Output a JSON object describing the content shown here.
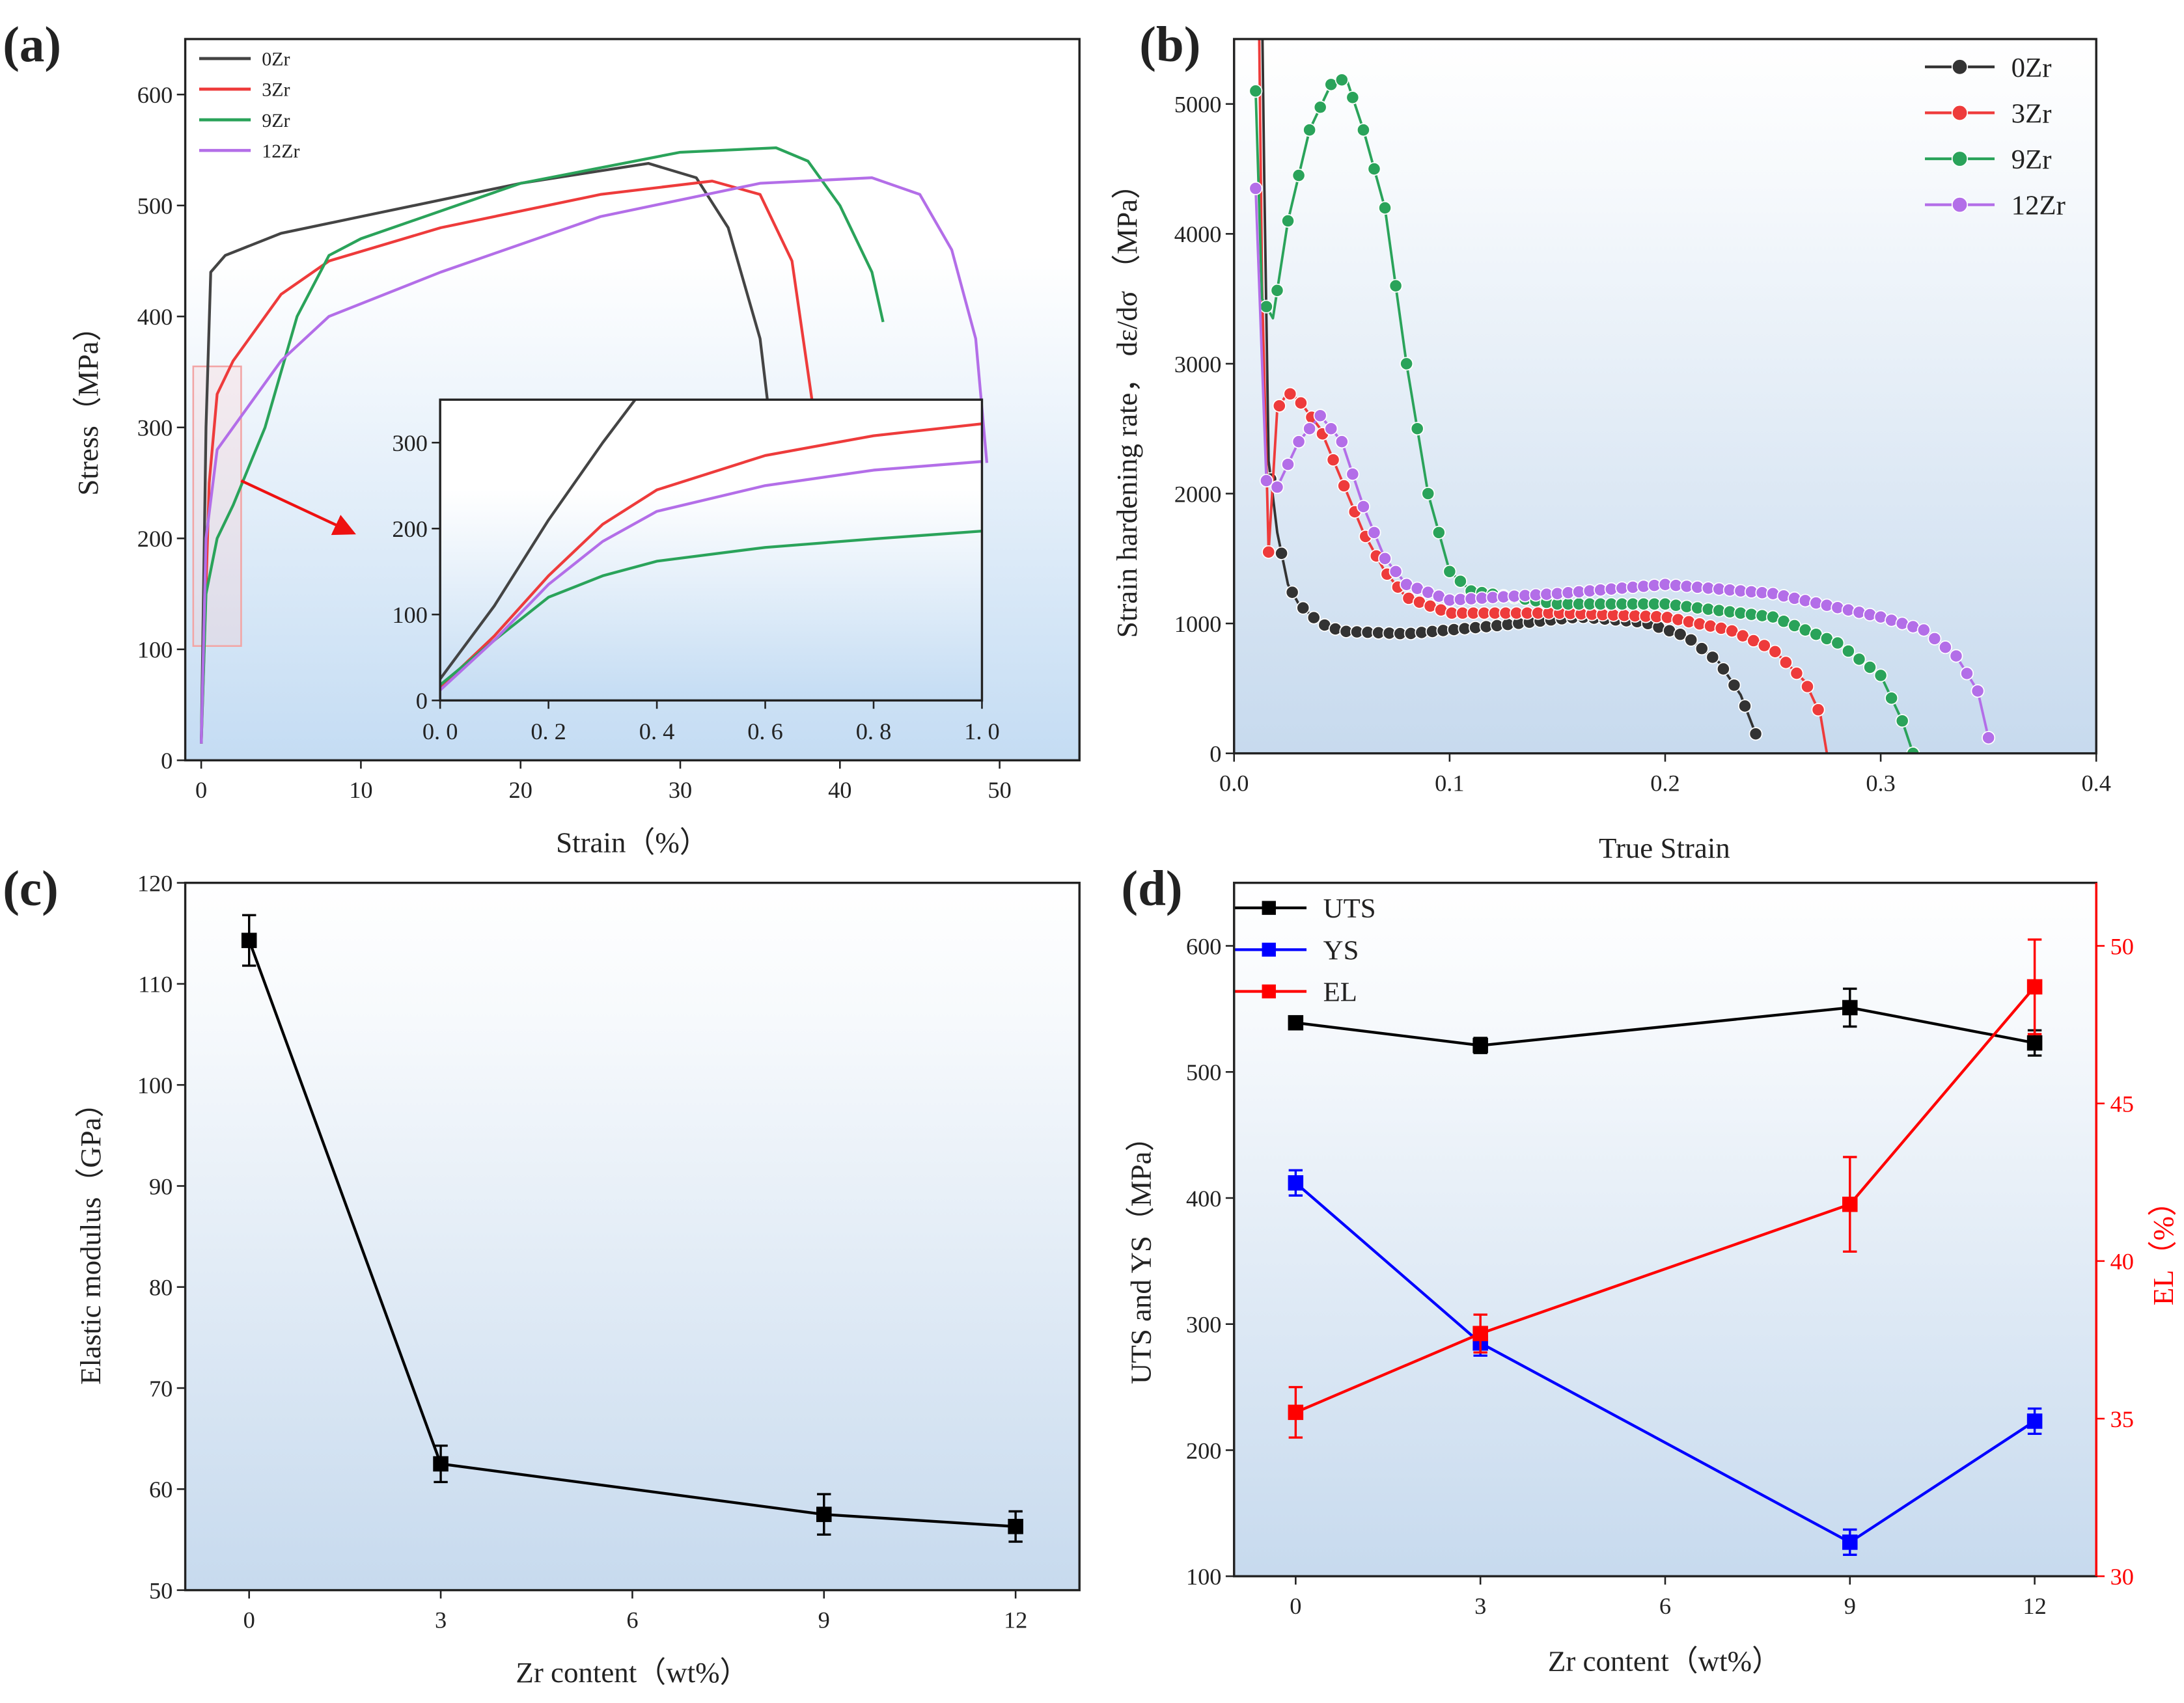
{
  "chart_data": [
    {
      "panel": "(a)",
      "type": "line",
      "xlabel": "Strain（%）",
      "ylabel": "Stress（MPa）",
      "xlim": [
        -1,
        55
      ],
      "ylim": [
        0,
        650
      ],
      "xticks": [
        0,
        10,
        20,
        30,
        40,
        50
      ],
      "xtick_labels": [
        "0",
        "10",
        "20",
        "30",
        "40",
        "50"
      ],
      "yticks": [
        0,
        100,
        200,
        300,
        400,
        500,
        600
      ],
      "ytick_labels": [
        "0",
        "100",
        "200",
        "300",
        "400",
        "500",
        "600"
      ],
      "legend_position": "top-left",
      "series": [
        {
          "name": "0Zr",
          "color": "#444444",
          "points": [
            [
              0,
              15
            ],
            [
              0.3,
              300
            ],
            [
              0.6,
              440
            ],
            [
              1.5,
              455
            ],
            [
              5,
              475
            ],
            [
              10,
              490
            ],
            [
              20,
              520
            ],
            [
              28,
              538
            ],
            [
              31,
              525
            ],
            [
              33,
              480
            ],
            [
              35,
              380
            ],
            [
              35.5,
              320
            ]
          ]
        },
        {
          "name": "3Zr",
          "color": "#ee3b3b",
          "points": [
            [
              0,
              15
            ],
            [
              0.5,
              250
            ],
            [
              1,
              330
            ],
            [
              2,
              360
            ],
            [
              5,
              420
            ],
            [
              8,
              450
            ],
            [
              15,
              480
            ],
            [
              25,
              510
            ],
            [
              32,
              522
            ],
            [
              35,
              510
            ],
            [
              37,
              450
            ],
            [
              38.3,
              320
            ]
          ]
        },
        {
          "name": "9Zr",
          "color": "#2aa35a",
          "points": [
            [
              0,
              15
            ],
            [
              0.3,
              150
            ],
            [
              1,
              200
            ],
            [
              2,
              230
            ],
            [
              4,
              300
            ],
            [
              6,
              400
            ],
            [
              8,
              455
            ],
            [
              10,
              470
            ],
            [
              20,
              520
            ],
            [
              30,
              548
            ],
            [
              36,
              552
            ],
            [
              38,
              540
            ],
            [
              40,
              500
            ],
            [
              42,
              440
            ],
            [
              42.7,
              395
            ]
          ]
        },
        {
          "name": "12Zr",
          "color": "#b36ee8",
          "points": [
            [
              0,
              15
            ],
            [
              0.3,
              200
            ],
            [
              1,
              280
            ],
            [
              2,
              300
            ],
            [
              5,
              360
            ],
            [
              8,
              400
            ],
            [
              15,
              440
            ],
            [
              25,
              490
            ],
            [
              35,
              520
            ],
            [
              42,
              525
            ],
            [
              45,
              510
            ],
            [
              47,
              460
            ],
            [
              48.5,
              380
            ],
            [
              49.2,
              268
            ]
          ]
        }
      ],
      "zoom_box": {
        "x": [
          -0.5,
          2.5
        ],
        "y": [
          103,
          355
        ]
      },
      "inset": {
        "xlim": [
          0,
          1
        ],
        "ylim": [
          0,
          350
        ],
        "xticks": [
          0,
          0.2,
          0.4,
          0.6,
          0.8,
          1.0
        ],
        "xtick_labels": [
          "0. 0",
          "0. 2",
          "0. 4",
          "0. 6",
          "0. 8",
          "1. 0"
        ],
        "yticks": [
          0,
          100,
          200,
          300
        ],
        "ytick_labels": [
          "0",
          "100",
          "200",
          "300"
        ],
        "series": [
          {
            "name": "0Zr",
            "color": "#444444",
            "points": [
              [
                0,
                25
              ],
              [
                0.1,
                110
              ],
              [
                0.2,
                210
              ],
              [
                0.3,
                300
              ],
              [
                0.36,
                350
              ]
            ]
          },
          {
            "name": "3Zr",
            "color": "#ee3b3b",
            "points": [
              [
                0,
                15
              ],
              [
                0.1,
                75
              ],
              [
                0.2,
                145
              ],
              [
                0.3,
                205
              ],
              [
                0.4,
                245
              ],
              [
                0.6,
                285
              ],
              [
                0.8,
                308
              ],
              [
                1,
                322
              ]
            ]
          },
          {
            "name": "9Zr",
            "color": "#2aa35a",
            "points": [
              [
                0,
                18
              ],
              [
                0.1,
                70
              ],
              [
                0.2,
                120
              ],
              [
                0.3,
                145
              ],
              [
                0.4,
                162
              ],
              [
                0.6,
                178
              ],
              [
                0.8,
                188
              ],
              [
                1,
                197
              ]
            ]
          },
          {
            "name": "12Zr",
            "color": "#b36ee8",
            "points": [
              [
                0,
                12
              ],
              [
                0.1,
                70
              ],
              [
                0.2,
                135
              ],
              [
                0.3,
                185
              ],
              [
                0.4,
                220
              ],
              [
                0.6,
                250
              ],
              [
                0.8,
                268
              ],
              [
                1,
                278
              ]
            ]
          }
        ]
      }
    },
    {
      "panel": "(b)",
      "type": "line",
      "xlabel": "True Strain",
      "ylabel": "Strain hardening rate， dε/dσ （MPa）",
      "xlim": [
        0,
        0.4
      ],
      "ylim": [
        0,
        5500
      ],
      "xticks": [
        0,
        0.1,
        0.2,
        0.3,
        0.4
      ],
      "xtick_labels": [
        "0.0",
        "0.1",
        "0.2",
        "0.3",
        "0.4"
      ],
      "yticks": [
        0,
        1000,
        2000,
        3000,
        4000,
        5000
      ],
      "ytick_labels": [
        "0",
        "1000",
        "2000",
        "3000",
        "4000",
        "5000"
      ],
      "legend_position": "top-right",
      "series": [
        {
          "name": "0Zr",
          "color": "#333333",
          "points": [
            [
              0.012,
              7000
            ],
            [
              0.014,
              4400
            ],
            [
              0.016,
              2250
            ],
            [
              0.02,
              1700
            ],
            [
              0.025,
              1300
            ],
            [
              0.03,
              1150
            ],
            [
              0.04,
              1000
            ],
            [
              0.05,
              940
            ],
            [
              0.08,
              920
            ],
            [
              0.12,
              980
            ],
            [
              0.16,
              1050
            ],
            [
              0.19,
              1010
            ],
            [
              0.21,
              900
            ],
            [
              0.225,
              700
            ],
            [
              0.235,
              450
            ],
            [
              0.242,
              150
            ]
          ]
        },
        {
          "name": "3Zr",
          "color": "#ee3b3b",
          "points": [
            [
              0.011,
              6500
            ],
            [
              0.013,
              3600
            ],
            [
              0.016,
              1550
            ],
            [
              0.02,
              2650
            ],
            [
              0.025,
              2780
            ],
            [
              0.03,
              2720
            ],
            [
              0.04,
              2500
            ],
            [
              0.05,
              2100
            ],
            [
              0.06,
              1700
            ],
            [
              0.07,
              1400
            ],
            [
              0.08,
              1200
            ],
            [
              0.1,
              1080
            ],
            [
              0.15,
              1080
            ],
            [
              0.2,
              1050
            ],
            [
              0.23,
              950
            ],
            [
              0.25,
              800
            ],
            [
              0.265,
              550
            ],
            [
              0.272,
              300
            ],
            [
              0.275,
              0
            ]
          ]
        },
        {
          "name": "9Zr",
          "color": "#2aa35a",
          "points": [
            [
              0.01,
              5100
            ],
            [
              0.013,
              3500
            ],
            [
              0.018,
              3350
            ],
            [
              0.025,
              4100
            ],
            [
              0.035,
              4800
            ],
            [
              0.045,
              5150
            ],
            [
              0.052,
              5200
            ],
            [
              0.06,
              4800
            ],
            [
              0.07,
              4200
            ],
            [
              0.08,
              3000
            ],
            [
              0.09,
              2000
            ],
            [
              0.1,
              1400
            ],
            [
              0.11,
              1250
            ],
            [
              0.15,
              1150
            ],
            [
              0.2,
              1150
            ],
            [
              0.25,
              1050
            ],
            [
              0.28,
              850
            ],
            [
              0.3,
              600
            ],
            [
              0.31,
              250
            ],
            [
              0.315,
              0
            ]
          ]
        },
        {
          "name": "12Zr",
          "color": "#b36ee8",
          "points": [
            [
              0.01,
              4350
            ],
            [
              0.015,
              2100
            ],
            [
              0.02,
              2050
            ],
            [
              0.03,
              2400
            ],
            [
              0.04,
              2600
            ],
            [
              0.05,
              2400
            ],
            [
              0.06,
              1900
            ],
            [
              0.07,
              1500
            ],
            [
              0.08,
              1300
            ],
            [
              0.1,
              1180
            ],
            [
              0.15,
              1230
            ],
            [
              0.2,
              1300
            ],
            [
              0.25,
              1230
            ],
            [
              0.3,
              1050
            ],
            [
              0.32,
              950
            ],
            [
              0.335,
              750
            ],
            [
              0.345,
              480
            ],
            [
              0.35,
              120
            ]
          ]
        }
      ]
    },
    {
      "panel": "(c)",
      "type": "line",
      "xlabel": "Zr content（wt%）",
      "ylabel": "Elastic modulus（GPa）",
      "xlim": [
        -1,
        13
      ],
      "ylim": [
        50,
        120
      ],
      "xticks": [
        0,
        3,
        6,
        9,
        12
      ],
      "xtick_labels": [
        "0",
        "3",
        "6",
        "9",
        "12"
      ],
      "yticks": [
        50,
        60,
        70,
        80,
        90,
        100,
        110,
        120
      ],
      "ytick_labels": [
        "50",
        "60",
        "70",
        "80",
        "90",
        "100",
        "110",
        "120"
      ],
      "series": [
        {
          "name": "Elastic modulus",
          "color": "#000000",
          "x": [
            0,
            3,
            9,
            12
          ],
          "values": [
            114.3,
            62.5,
            57.5,
            56.3
          ],
          "errors": [
            2.5,
            1.8,
            2.0,
            1.5
          ]
        }
      ]
    },
    {
      "panel": "(d)",
      "type": "line",
      "xlabel": "Zr content（wt%）",
      "ylabel": "UTS and YS（MPa）",
      "y2label": "EL（%）",
      "xlim": [
        -1,
        13
      ],
      "ylim": [
        100,
        650
      ],
      "y2lim": [
        30,
        52
      ],
      "xticks": [
        0,
        3,
        6,
        9,
        12
      ],
      "xtick_labels": [
        "0",
        "3",
        "6",
        "9",
        "12"
      ],
      "yticks": [
        100,
        200,
        300,
        400,
        500,
        600
      ],
      "ytick_labels": [
        "100",
        "200",
        "300",
        "400",
        "500",
        "600"
      ],
      "y2ticks": [
        30,
        35,
        40,
        45,
        50
      ],
      "y2tick_labels": [
        "30",
        "35",
        "40",
        "45",
        "50"
      ],
      "legend_position": "top-left",
      "series": [
        {
          "name": "UTS",
          "color": "#000000",
          "axis": "left",
          "x": [
            0,
            3,
            9,
            12
          ],
          "values": [
            539,
            521,
            551,
            523
          ],
          "errors": [
            4,
            6,
            15,
            10
          ]
        },
        {
          "name": "YS",
          "color": "#0000ff",
          "axis": "left",
          "x": [
            0,
            3,
            9,
            12
          ],
          "values": [
            412,
            285,
            127,
            223
          ],
          "errors": [
            10,
            10,
            10,
            10
          ]
        },
        {
          "name": "EL",
          "color": "#ff0000",
          "axis": "right",
          "x": [
            0,
            3,
            9,
            12
          ],
          "values": [
            35.2,
            37.7,
            41.8,
            48.7
          ],
          "errors": [
            0.8,
            0.6,
            1.5,
            1.5
          ]
        }
      ]
    }
  ]
}
